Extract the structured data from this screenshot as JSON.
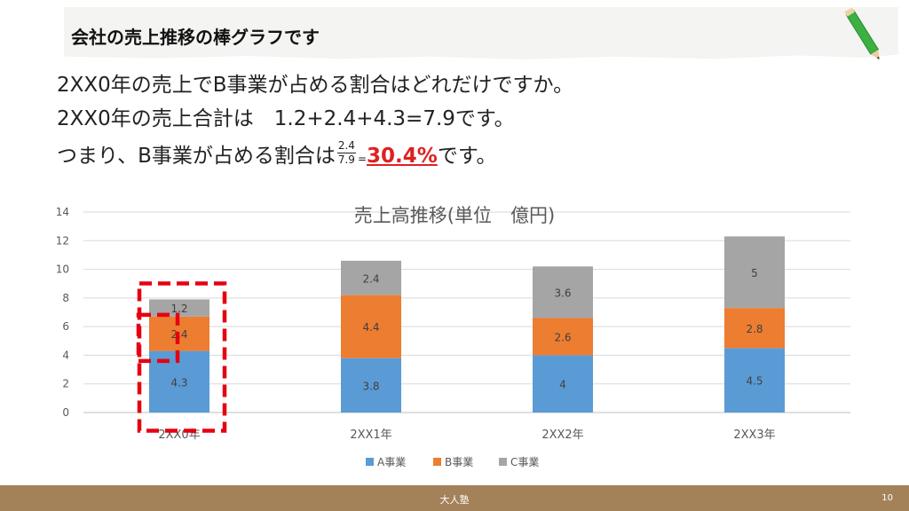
{
  "slide": {
    "title": "会社の売上推移の棒グラフです",
    "line1": "2XX0年の売上でB事業が占める割合はどれだけですか。",
    "line2": "2XX0年の売上合計は　1.2+2.4+4.3=7.9です。",
    "line3_prefix": "つまり、B事業が占める割合は",
    "fraction_num": "2.4",
    "fraction_den": "7.9",
    "equals": "=",
    "percent": "30.4%",
    "line3_suffix": "です。"
  },
  "footer": {
    "center": "大人塾",
    "page": "10"
  },
  "colors": {
    "A": "#5b9bd5",
    "B": "#ed7d31",
    "C": "#a5a5a5",
    "highlight": "#e60012",
    "footer": "#a3825a"
  },
  "chart_data": {
    "type": "bar",
    "stacked": true,
    "title": "売上高推移(単位　億円)",
    "categories": [
      "2XX0年",
      "2XX1年",
      "2XX2年",
      "2XX3年"
    ],
    "series": [
      {
        "name": "A事業",
        "values": [
          4.3,
          3.8,
          4,
          4.5
        ],
        "labels": [
          "4.3",
          "3.8",
          "4",
          "4.5"
        ]
      },
      {
        "name": "B事業",
        "values": [
          2.4,
          4.4,
          2.6,
          2.8
        ],
        "labels": [
          "2.4",
          "4.4",
          "2.6",
          "2.8"
        ]
      },
      {
        "name": "C事業",
        "values": [
          1.2,
          2.4,
          3.6,
          5
        ],
        "labels": [
          "1.2",
          "2.4",
          "3.6",
          "5"
        ]
      }
    ],
    "ylim": [
      0,
      14
    ],
    "yticks": [
      "0",
      "2",
      "4",
      "6",
      "8",
      "10",
      "12",
      "14"
    ],
    "grid": true,
    "legend": "bottom"
  }
}
